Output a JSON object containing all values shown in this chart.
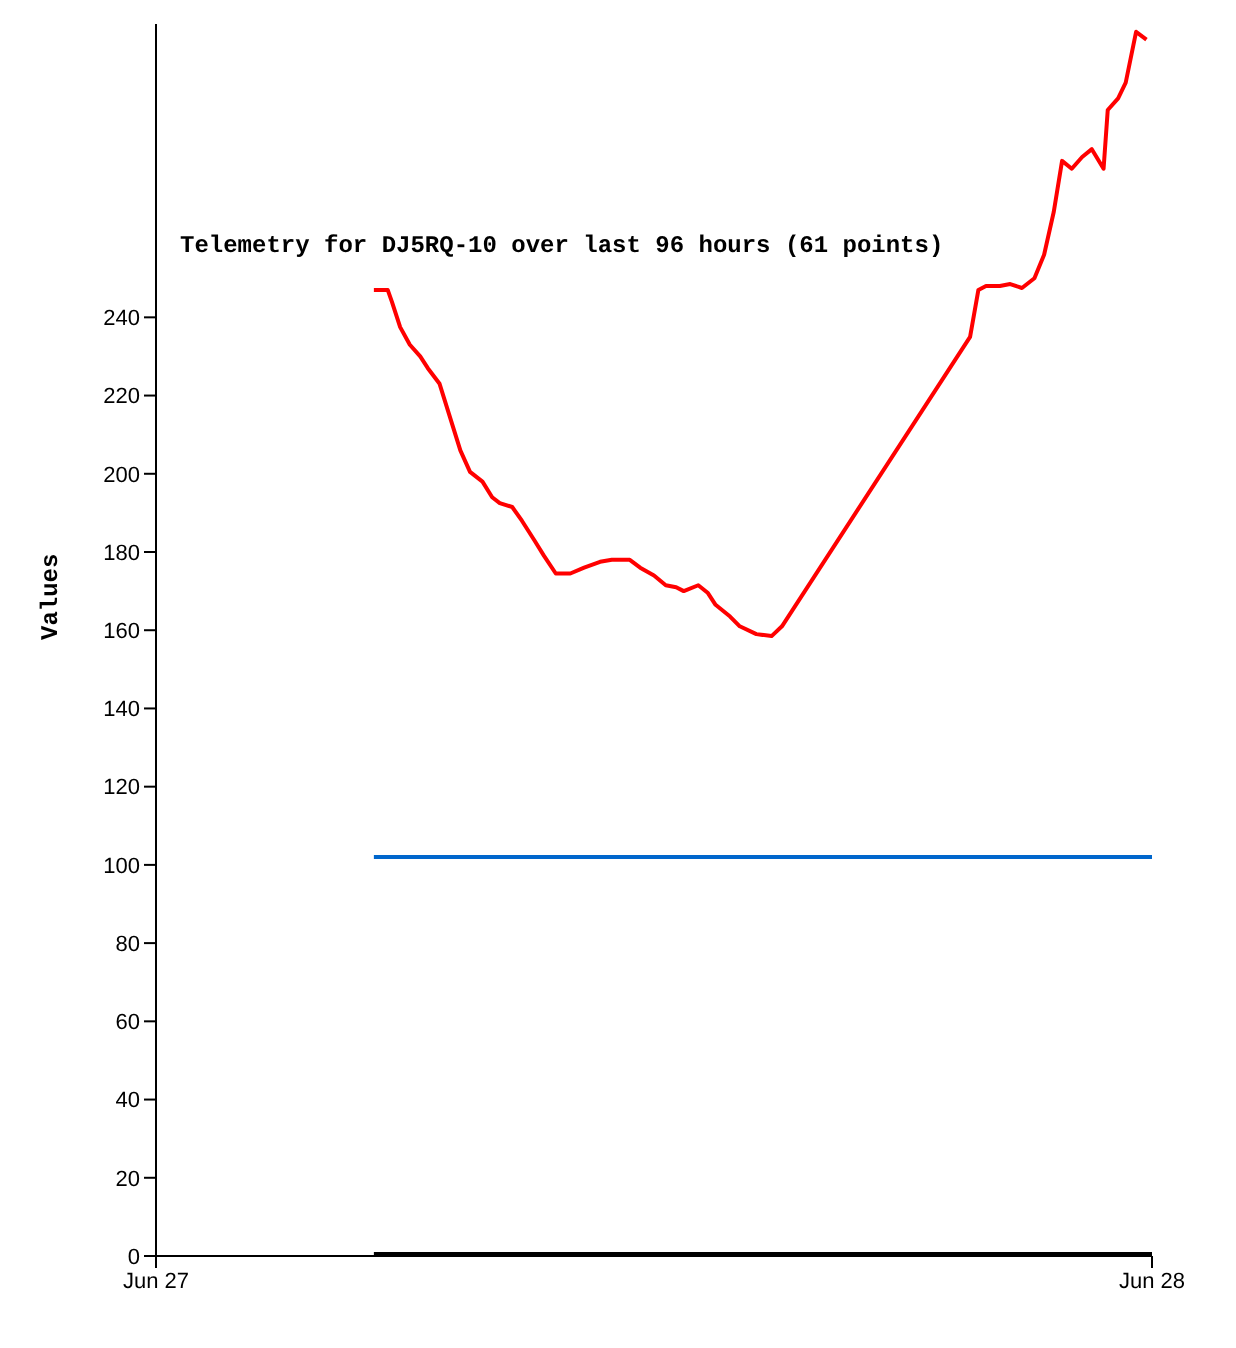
{
  "chart_data": {
    "type": "line",
    "title": "Telemetry for DJ5RQ-10 over last 96 hours (61 points)",
    "ylabel": "Values",
    "xlim": [
      "--06-27",
      "--06-28"
    ],
    "xticks": [
      {
        "value": "--06-27",
        "label": "Jun 27"
      },
      {
        "value": "--06-28",
        "label": "Jun 28"
      }
    ],
    "ylim": [
      0,
      315
    ],
    "yticks": [
      0,
      20,
      40,
      60,
      80,
      100,
      120,
      140,
      160,
      180,
      200,
      220,
      240
    ],
    "grid": false,
    "marker": "none",
    "line_style": "solid",
    "series": [
      {
        "color": "#ff0000",
        "x": [
          "--06-27T05:15",
          "--06-27T05:35",
          "--06-27T05:41",
          "--06-27T05:53",
          "--06-27T06:07",
          "--06-27T06:22",
          "--06-27T06:33",
          "--06-27T06:50",
          "--06-27T07:05",
          "--06-27T07:20",
          "--06-27T07:34",
          "--06-27T07:52",
          "--06-27T08:06",
          "--06-27T08:17",
          "--06-27T08:35",
          "--06-27T08:49",
          "--06-27T09:07",
          "--06-27T09:21",
          "--06-27T09:38",
          "--06-27T09:59",
          "--06-27T10:19",
          "--06-27T10:42",
          "--06-27T10:59",
          "--06-27T11:25",
          "--06-27T11:40",
          "--06-27T12:00",
          "--06-27T12:17",
          "--06-27T12:32",
          "--06-27T12:43",
          "--06-27T13:04",
          "--06-27T13:18",
          "--06-27T13:29",
          "--06-27T13:50",
          "--06-27T14:04",
          "--06-27T14:28",
          "--06-27T14:50",
          "--06-27T15:05",
          "--06-27T19:37",
          "--06-27T19:49",
          "--06-27T20:00",
          "--06-27T20:20",
          "--06-27T20:35",
          "--06-27T20:52",
          "--06-27T21:10",
          "--06-27T21:24",
          "--06-27T21:38",
          "--06-27T21:50",
          "--06-27T22:04",
          "--06-27T22:19",
          "--06-27T22:33",
          "--06-27T22:50",
          "--06-27T22:56",
          "--06-27T23:11",
          "--06-27T23:22",
          "--06-27T23:37",
          "--06-27T23:52"
        ],
        "values": [
          247,
          247,
          244,
          237.5,
          233,
          230,
          227,
          223,
          214.5,
          206,
          200.5,
          198,
          194,
          192.5,
          191.5,
          188,
          183,
          179,
          174.5,
          174.5,
          176,
          177.5,
          178,
          178,
          176,
          174,
          171.5,
          171,
          170,
          171.5,
          169.5,
          166.5,
          163.5,
          161,
          159,
          158.5,
          161,
          235,
          247,
          248,
          248,
          248.5,
          247.5,
          250,
          256,
          267,
          280,
          278,
          281,
          283,
          278,
          293,
          296,
          300,
          313,
          311
        ]
      },
      {
        "color": "#0066cc",
        "x": [
          "--06-27T05:15",
          "--06-28"
        ],
        "values": [
          102,
          102
        ]
      },
      {
        "color": "#000000",
        "x": [
          "--06-27T05:15",
          "--06-28"
        ],
        "values": [
          0.5,
          0.5
        ]
      }
    ]
  }
}
